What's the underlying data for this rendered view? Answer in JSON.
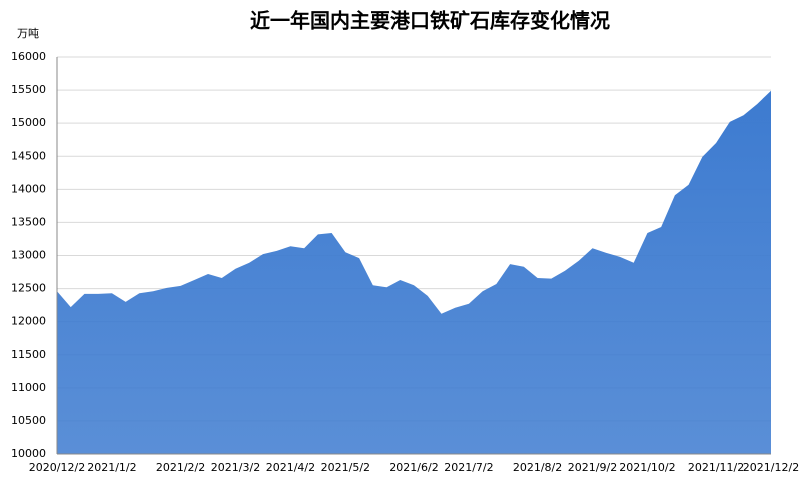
{
  "chart_data": {
    "type": "area",
    "title": "近一年国内主要港口铁矿石库存变化情况",
    "y_label": "万吨",
    "categories": [
      "2020/12/2",
      null,
      null,
      null,
      "2021/1/2",
      null,
      null,
      null,
      null,
      "2021/2/2",
      null,
      null,
      null,
      "2021/3/2",
      null,
      null,
      null,
      "2021/4/2",
      null,
      null,
      null,
      "2021/5/2",
      null,
      null,
      null,
      null,
      "2021/6/2",
      null,
      null,
      null,
      "2021/7/2",
      null,
      null,
      null,
      null,
      "2021/8/2",
      null,
      null,
      null,
      "2021/9/2",
      null,
      null,
      null,
      "2021/10/2",
      null,
      null,
      null,
      null,
      "2021/11/2",
      null,
      null,
      null,
      "2021/12/2"
    ],
    "values": [
      12460,
      12220,
      12420,
      12420,
      12430,
      12300,
      12430,
      12460,
      12510,
      12540,
      12630,
      12720,
      12660,
      12800,
      12890,
      13020,
      13070,
      13140,
      13110,
      13320,
      13340,
      13050,
      12960,
      12550,
      12520,
      12630,
      12550,
      12390,
      12120,
      12210,
      12270,
      12460,
      12570,
      12870,
      12830,
      12660,
      12650,
      12770,
      12920,
      13110,
      13040,
      12980,
      12890,
      13340,
      13430,
      13910,
      14070,
      14490,
      14700,
      15020,
      15120,
      15290,
      15490
    ],
    "color": "#3d7bd0",
    "ylim": [
      10000,
      16000
    ],
    "yticks": [
      10000,
      10500,
      11000,
      11500,
      12000,
      12500,
      13000,
      13500,
      14000,
      14500,
      15000,
      15500,
      16000
    ],
    "grid": true
  }
}
